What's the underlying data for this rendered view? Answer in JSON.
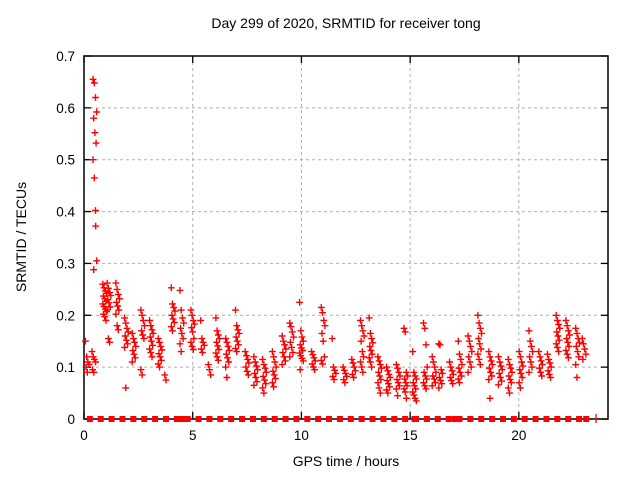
{
  "title": "Day 299 of 2020, SRMTID for receiver tong",
  "axes": {
    "x": {
      "label": "GPS time / hours",
      "ticks": [
        0,
        5,
        10,
        15,
        20
      ],
      "min": 0,
      "max": 24.1
    },
    "y": {
      "label": "SRMTID / TECUs",
      "ticks": [
        0,
        0.1,
        0.2,
        0.3,
        0.4,
        0.5,
        0.6,
        0.7
      ],
      "min": 0,
      "max": 0.7
    }
  },
  "colors": {
    "marker": "#ff0000",
    "grid": "#b0b0b0",
    "axis": "#000000",
    "background": "#ffffff"
  },
  "chart_data": {
    "type": "scatter",
    "title": "Day 299 of 2020, SRMTID for receiver tong",
    "xlabel": "GPS time / hours",
    "ylabel": "SRMTID / TECUs",
    "xlim": [
      0,
      24.1
    ],
    "ylim": [
      0,
      0.7
    ],
    "grid": "dashed at each major tick",
    "legend": "none",
    "marker": "plus",
    "marker_color": "#ff0000",
    "clusters": [
      {
        "x": 0.15,
        "ys": [
          0.15,
          0.12,
          0.11,
          0.105,
          0.1,
          0.09
        ]
      },
      {
        "x": 0.45,
        "ys": [
          0.13,
          0.12,
          0.115,
          0.11,
          0.095,
          0.09
        ]
      },
      {
        "x": 0.5,
        "ys": [
          0.655,
          0.648,
          0.62,
          0.592,
          0.58,
          0.552,
          0.532,
          0.5,
          0.465,
          0.402,
          0.305,
          0.288
        ]
      },
      {
        "x": 0.62,
        "ys": [
          0.372
        ]
      },
      {
        "x": 0.95,
        "ys": [
          0.26,
          0.253,
          0.247,
          0.242,
          0.237,
          0.232,
          0.227,
          0.222,
          0.217,
          0.212,
          0.207,
          0.202,
          0.197,
          0.19
        ]
      },
      {
        "x": 1.15,
        "ys": [
          0.262,
          0.252,
          0.244,
          0.238,
          0.23,
          0.224,
          0.216,
          0.21,
          0.155,
          0.148
        ]
      },
      {
        "x": 1.55,
        "ys": [
          0.262,
          0.25,
          0.24,
          0.232,
          0.225,
          0.218,
          0.21,
          0.202,
          0.18,
          0.172
        ]
      },
      {
        "x": 1.95,
        "ys": [
          0.195,
          0.185,
          0.175,
          0.168,
          0.16,
          0.152,
          0.145,
          0.138,
          0.06
        ]
      },
      {
        "x": 2.3,
        "ys": [
          0.165,
          0.155,
          0.148,
          0.14,
          0.132,
          0.125,
          0.118,
          0.11
        ]
      },
      {
        "x": 2.7,
        "ys": [
          0.21,
          0.2,
          0.19,
          0.18,
          0.17,
          0.162,
          0.155,
          0.095,
          0.085
        ]
      },
      {
        "x": 3.1,
        "ys": [
          0.19,
          0.18,
          0.172,
          0.165,
          0.158,
          0.15,
          0.142,
          0.135,
          0.128,
          0.12
        ]
      },
      {
        "x": 3.5,
        "ys": [
          0.155,
          0.148,
          0.14,
          0.133,
          0.126,
          0.12,
          0.113,
          0.106,
          0.1
        ]
      },
      {
        "x": 3.8,
        "ys": [
          0.085,
          0.075
        ]
      },
      {
        "x": 4.1,
        "ys": [
          0.253,
          0.222,
          0.215,
          0.208,
          0.2,
          0.193,
          0.186,
          0.178,
          0.17
        ]
      },
      {
        "x": 4.5,
        "ys": [
          0.248,
          0.21,
          0.195,
          0.185,
          0.175,
          0.165,
          0.155,
          0.145,
          0.13
        ]
      },
      {
        "x": 5.0,
        "ys": [
          0.21,
          0.2,
          0.19,
          0.183,
          0.176,
          0.168,
          0.155,
          0.148,
          0.14,
          0.134
        ]
      },
      {
        "x": 5.45,
        "ys": [
          0.19,
          0.155,
          0.148,
          0.142,
          0.135,
          0.128
        ]
      },
      {
        "x": 5.8,
        "ys": [
          0.105,
          0.095,
          0.085
        ]
      },
      {
        "x": 6.15,
        "ys": [
          0.195,
          0.17,
          0.162,
          0.155,
          0.148,
          0.141,
          0.134,
          0.127,
          0.12,
          0.113
        ]
      },
      {
        "x": 6.6,
        "ys": [
          0.155,
          0.148,
          0.14,
          0.132,
          0.125,
          0.118,
          0.11,
          0.1,
          0.08
        ]
      },
      {
        "x": 7.05,
        "ys": [
          0.21,
          0.18,
          0.172,
          0.165,
          0.158,
          0.15,
          0.143,
          0.136,
          0.13
        ]
      },
      {
        "x": 7.5,
        "ys": [
          0.13,
          0.122,
          0.115,
          0.108,
          0.1,
          0.092,
          0.085
        ]
      },
      {
        "x": 7.9,
        "ys": [
          0.12,
          0.11,
          0.102,
          0.095,
          0.088,
          0.08,
          0.072,
          0.065
        ]
      },
      {
        "x": 8.3,
        "ys": [
          0.115,
          0.105,
          0.098,
          0.09,
          0.082,
          0.075,
          0.068,
          0.06,
          0.05
        ]
      },
      {
        "x": 8.75,
        "ys": [
          0.13,
          0.12,
          0.11,
          0.1,
          0.092,
          0.085,
          0.078,
          0.07,
          0.062
        ]
      },
      {
        "x": 9.2,
        "ys": [
          0.16,
          0.15,
          0.143,
          0.135,
          0.128,
          0.12,
          0.112,
          0.105
        ]
      },
      {
        "x": 9.55,
        "ys": [
          0.185,
          0.178,
          0.168,
          0.158,
          0.148,
          0.138,
          0.128,
          0.12
        ]
      },
      {
        "x": 10.0,
        "ys": [
          0.225,
          0.17,
          0.158,
          0.15,
          0.143,
          0.137,
          0.132,
          0.127,
          0.122,
          0.117,
          0.112,
          0.095
        ]
      },
      {
        "x": 10.55,
        "ys": [
          0.13,
          0.124,
          0.118,
          0.112,
          0.106,
          0.1,
          0.095
        ]
      },
      {
        "x": 11.0,
        "ys": [
          0.215,
          0.205,
          0.19,
          0.18,
          0.165,
          0.15,
          0.12,
          0.113,
          0.106
        ]
      },
      {
        "x": 11.5,
        "ys": [
          0.155,
          0.1,
          0.094,
          0.088,
          0.082,
          0.076
        ]
      },
      {
        "x": 12.0,
        "ys": [
          0.1,
          0.094,
          0.088,
          0.082,
          0.076,
          0.07
        ]
      },
      {
        "x": 12.4,
        "ys": [
          0.115,
          0.108,
          0.1,
          0.093,
          0.086,
          0.08
        ]
      },
      {
        "x": 12.8,
        "ys": [
          0.19,
          0.18,
          0.17,
          0.16,
          0.15,
          0.13,
          0.12,
          0.11,
          0.1,
          0.09
        ]
      },
      {
        "x": 13.2,
        "ys": [
          0.195,
          0.165,
          0.155,
          0.147,
          0.14,
          0.132,
          0.125,
          0.118,
          0.11,
          0.1
        ]
      },
      {
        "x": 13.6,
        "ys": [
          0.12,
          0.112,
          0.105,
          0.098,
          0.09,
          0.083,
          0.076,
          0.07,
          0.06,
          0.05
        ]
      },
      {
        "x": 14.0,
        "ys": [
          0.1,
          0.093,
          0.086,
          0.08,
          0.074,
          0.068,
          0.062,
          0.056,
          0.05
        ]
      },
      {
        "x": 14.45,
        "ys": [
          0.105,
          0.098,
          0.09,
          0.083,
          0.076,
          0.07,
          0.064,
          0.058,
          0.045
        ]
      },
      {
        "x": 14.8,
        "ys": [
          0.175,
          0.168,
          0.09,
          0.083,
          0.077,
          0.07,
          0.064,
          0.058,
          0.052,
          0.04
        ]
      },
      {
        "x": 15.2,
        "ys": [
          0.13,
          0.09,
          0.083,
          0.077,
          0.07,
          0.064,
          0.058,
          0.052,
          0.046,
          0.04,
          0.035
        ]
      },
      {
        "x": 15.7,
        "ys": [
          0.185,
          0.175,
          0.143,
          0.1,
          0.09,
          0.083,
          0.077,
          0.07,
          0.064,
          0.058
        ]
      },
      {
        "x": 16.1,
        "ys": [
          0.12,
          0.11,
          0.1,
          0.09,
          0.083,
          0.077,
          0.07,
          0.064
        ]
      },
      {
        "x": 16.4,
        "ys": [
          0.145,
          0.143,
          0.095,
          0.088,
          0.08,
          0.074,
          0.068,
          0.06
        ]
      },
      {
        "x": 16.9,
        "ys": [
          0.11,
          0.1,
          0.093,
          0.086,
          0.08,
          0.074,
          0.068
        ]
      },
      {
        "x": 17.3,
        "ys": [
          0.15,
          0.125,
          0.115,
          0.105,
          0.098,
          0.09,
          0.083,
          0.077,
          0.07
        ]
      },
      {
        "x": 17.75,
        "ys": [
          0.16,
          0.15,
          0.14,
          0.13,
          0.12,
          0.11,
          0.1,
          0.09
        ]
      },
      {
        "x": 18.2,
        "ys": [
          0.2,
          0.185,
          0.175,
          0.165,
          0.155,
          0.145,
          0.135,
          0.125,
          0.115,
          0.105
        ]
      },
      {
        "x": 18.7,
        "ys": [
          0.13,
          0.12,
          0.112,
          0.105,
          0.098,
          0.09,
          0.083,
          0.076,
          0.04
        ]
      },
      {
        "x": 19.15,
        "ys": [
          0.12,
          0.11,
          0.102,
          0.095,
          0.088,
          0.08,
          0.073,
          0.066
        ]
      },
      {
        "x": 19.6,
        "ys": [
          0.115,
          0.105,
          0.098,
          0.09,
          0.083,
          0.076,
          0.07,
          0.06,
          0.05
        ]
      },
      {
        "x": 20.1,
        "ys": [
          0.13,
          0.12,
          0.11,
          0.102,
          0.095,
          0.088,
          0.08,
          0.07,
          0.06
        ]
      },
      {
        "x": 20.55,
        "ys": [
          0.17,
          0.15,
          0.14,
          0.13,
          0.12,
          0.11,
          0.1,
          0.09
        ]
      },
      {
        "x": 21.0,
        "ys": [
          0.13,
          0.12,
          0.112,
          0.105,
          0.098,
          0.09,
          0.083
        ]
      },
      {
        "x": 21.4,
        "ys": [
          0.125,
          0.115,
          0.108,
          0.1,
          0.093,
          0.086,
          0.08
        ]
      },
      {
        "x": 21.8,
        "ys": [
          0.2,
          0.19,
          0.182,
          0.175,
          0.168,
          0.16,
          0.152,
          0.145,
          0.138,
          0.13
        ]
      },
      {
        "x": 22.25,
        "ys": [
          0.19,
          0.18,
          0.17,
          0.162,
          0.155,
          0.148,
          0.14,
          0.132,
          0.125,
          0.118
        ]
      },
      {
        "x": 22.7,
        "ys": [
          0.175,
          0.165,
          0.155,
          0.147,
          0.14,
          0.13,
          0.12,
          0.105,
          0.08
        ]
      },
      {
        "x": 23.0,
        "ys": [
          0.155,
          0.145,
          0.135,
          0.125,
          0.115
        ]
      }
    ],
    "zero_squares": [
      0.27,
      0.77,
      1.27,
      1.77,
      2.27,
      2.77,
      3.27,
      3.77,
      4.27,
      4.45,
      4.6,
      4.77,
      5.27,
      5.77,
      6.27,
      6.77,
      7.27,
      7.77,
      8.27,
      8.77,
      9.27,
      9.77,
      10.27,
      10.77,
      11.27,
      11.77,
      12.27,
      12.77,
      13.27,
      13.77,
      14.27,
      14.77,
      15.2,
      15.27,
      15.77,
      16.27,
      16.77,
      17.05,
      17.27,
      17.77,
      18.27,
      18.77,
      19.27,
      19.77,
      20.27,
      20.77,
      21.27,
      21.77,
      22.27,
      22.77,
      23.1
    ],
    "zero_ticks": [
      23.55
    ]
  }
}
